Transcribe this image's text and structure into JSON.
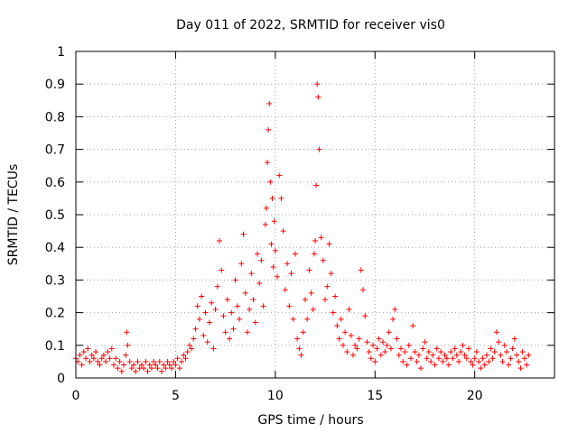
{
  "chart_data": {
    "type": "scatter",
    "title": "Day 011 of 2022, SRMTID for receiver vis0",
    "xlabel": "GPS time / hours",
    "ylabel": "SRMTID / TECUs",
    "xlim": [
      0,
      24
    ],
    "ylim": [
      0,
      1
    ],
    "x_ticks": [
      0,
      5,
      10,
      15,
      20
    ],
    "x_tick_labels": [
      "0",
      "5",
      "10",
      "15",
      "20"
    ],
    "y_ticks": [
      0,
      0.1,
      0.2,
      0.3,
      0.4,
      0.5,
      0.6,
      0.7,
      0.8,
      0.9,
      1
    ],
    "y_tick_labels": [
      "0",
      "0.1",
      "0.2",
      "0.3",
      "0.4",
      "0.5",
      "0.6",
      "0.7",
      "0.8",
      "0.9",
      "1"
    ],
    "grid": true,
    "marker": "+",
    "series": [
      {
        "name": "SRMTID",
        "color": "#ff0000",
        "x": [
          0.0,
          0.1,
          0.2,
          0.3,
          0.4,
          0.5,
          0.6,
          0.7,
          0.8,
          0.9,
          1.0,
          1.1,
          1.2,
          1.3,
          1.4,
          1.5,
          1.6,
          1.7,
          1.8,
          1.9,
          2.0,
          2.1,
          2.2,
          2.3,
          2.4,
          2.5,
          2.55,
          2.6,
          2.7,
          2.8,
          2.9,
          3.0,
          3.1,
          3.2,
          3.3,
          3.4,
          3.5,
          3.6,
          3.7,
          3.8,
          3.9,
          4.0,
          4.1,
          4.2,
          4.3,
          4.4,
          4.5,
          4.6,
          4.7,
          4.8,
          4.9,
          5.0,
          5.1,
          5.2,
          5.3,
          5.4,
          5.5,
          5.6,
          5.7,
          5.8,
          5.9,
          6.0,
          6.1,
          6.2,
          6.3,
          6.4,
          6.5,
          6.6,
          6.7,
          6.8,
          6.9,
          7.0,
          7.1,
          7.2,
          7.3,
          7.4,
          7.5,
          7.6,
          7.7,
          7.8,
          7.9,
          8.0,
          8.1,
          8.2,
          8.3,
          8.4,
          8.5,
          8.6,
          8.7,
          8.8,
          8.9,
          9.0,
          9.1,
          9.2,
          9.3,
          9.4,
          9.5,
          9.55,
          9.6,
          9.65,
          9.7,
          9.75,
          9.8,
          9.85,
          9.9,
          9.95,
          10.0,
          10.1,
          10.2,
          10.3,
          10.4,
          10.5,
          10.6,
          10.7,
          10.8,
          10.9,
          11.0,
          11.1,
          11.2,
          11.3,
          11.4,
          11.5,
          11.6,
          11.7,
          11.8,
          11.9,
          11.95,
          12.0,
          12.05,
          12.1,
          12.15,
          12.2,
          12.3,
          12.4,
          12.5,
          12.6,
          12.7,
          12.8,
          12.9,
          13.0,
          13.1,
          13.2,
          13.3,
          13.4,
          13.5,
          13.6,
          13.7,
          13.8,
          13.9,
          14.0,
          14.1,
          14.2,
          14.3,
          14.4,
          14.5,
          14.6,
          14.7,
          14.8,
          14.9,
          15.0,
          15.1,
          15.2,
          15.3,
          15.4,
          15.5,
          15.6,
          15.7,
          15.8,
          15.9,
          16.0,
          16.1,
          16.2,
          16.3,
          16.4,
          16.5,
          16.6,
          16.7,
          16.8,
          16.9,
          17.0,
          17.1,
          17.2,
          17.3,
          17.4,
          17.5,
          17.6,
          17.7,
          17.8,
          17.9,
          18.0,
          18.1,
          18.2,
          18.3,
          18.4,
          18.5,
          18.6,
          18.7,
          18.8,
          18.9,
          19.0,
          19.1,
          19.2,
          19.3,
          19.4,
          19.5,
          19.6,
          19.7,
          19.8,
          19.9,
          20.0,
          20.1,
          20.2,
          20.3,
          20.4,
          20.5,
          20.6,
          20.7,
          20.8,
          20.9,
          21.0,
          21.1,
          21.2,
          21.3,
          21.4,
          21.5,
          21.6,
          21.7,
          21.8,
          21.9,
          22.0,
          22.1,
          22.2,
          22.3,
          22.4,
          22.5,
          22.6,
          22.7
        ],
        "y": [
          0.06,
          0.05,
          0.07,
          0.04,
          0.08,
          0.06,
          0.09,
          0.05,
          0.07,
          0.06,
          0.08,
          0.05,
          0.04,
          0.06,
          0.07,
          0.05,
          0.08,
          0.06,
          0.09,
          0.04,
          0.06,
          0.03,
          0.05,
          0.02,
          0.04,
          0.07,
          0.14,
          0.1,
          0.05,
          0.03,
          0.04,
          0.02,
          0.05,
          0.03,
          0.04,
          0.03,
          0.05,
          0.02,
          0.04,
          0.03,
          0.05,
          0.04,
          0.03,
          0.05,
          0.02,
          0.04,
          0.03,
          0.05,
          0.04,
          0.03,
          0.05,
          0.04,
          0.06,
          0.03,
          0.05,
          0.07,
          0.06,
          0.08,
          0.1,
          0.09,
          0.12,
          0.15,
          0.22,
          0.18,
          0.25,
          0.13,
          0.2,
          0.11,
          0.17,
          0.23,
          0.09,
          0.21,
          0.28,
          0.42,
          0.33,
          0.19,
          0.14,
          0.24,
          0.12,
          0.2,
          0.15,
          0.3,
          0.22,
          0.18,
          0.35,
          0.44,
          0.26,
          0.14,
          0.21,
          0.32,
          0.24,
          0.17,
          0.38,
          0.29,
          0.36,
          0.22,
          0.47,
          0.52,
          0.66,
          0.76,
          0.84,
          0.6,
          0.41,
          0.55,
          0.34,
          0.48,
          0.39,
          0.31,
          0.62,
          0.55,
          0.45,
          0.27,
          0.35,
          0.22,
          0.32,
          0.18,
          0.38,
          0.12,
          0.09,
          0.07,
          0.14,
          0.24,
          0.18,
          0.33,
          0.26,
          0.21,
          0.38,
          0.42,
          0.59,
          0.9,
          0.86,
          0.7,
          0.43,
          0.36,
          0.24,
          0.28,
          0.41,
          0.32,
          0.2,
          0.25,
          0.16,
          0.12,
          0.18,
          0.1,
          0.14,
          0.08,
          0.21,
          0.13,
          0.07,
          0.1,
          0.09,
          0.12,
          0.33,
          0.27,
          0.19,
          0.11,
          0.08,
          0.06,
          0.1,
          0.05,
          0.09,
          0.12,
          0.07,
          0.11,
          0.08,
          0.1,
          0.14,
          0.09,
          0.18,
          0.21,
          0.12,
          0.07,
          0.09,
          0.05,
          0.08,
          0.04,
          0.1,
          0.06,
          0.16,
          0.08,
          0.05,
          0.07,
          0.03,
          0.09,
          0.11,
          0.06,
          0.08,
          0.05,
          0.07,
          0.04,
          0.09,
          0.06,
          0.08,
          0.05,
          0.07,
          0.06,
          0.04,
          0.08,
          0.06,
          0.09,
          0.07,
          0.05,
          0.08,
          0.1,
          0.07,
          0.06,
          0.09,
          0.05,
          0.04,
          0.06,
          0.08,
          0.05,
          0.03,
          0.06,
          0.04,
          0.07,
          0.05,
          0.09,
          0.06,
          0.08,
          0.14,
          0.11,
          0.07,
          0.05,
          0.1,
          0.08,
          0.04,
          0.06,
          0.09,
          0.12,
          0.07,
          0.05,
          0.03,
          0.08,
          0.06,
          0.04,
          0.07
        ]
      }
    ]
  }
}
